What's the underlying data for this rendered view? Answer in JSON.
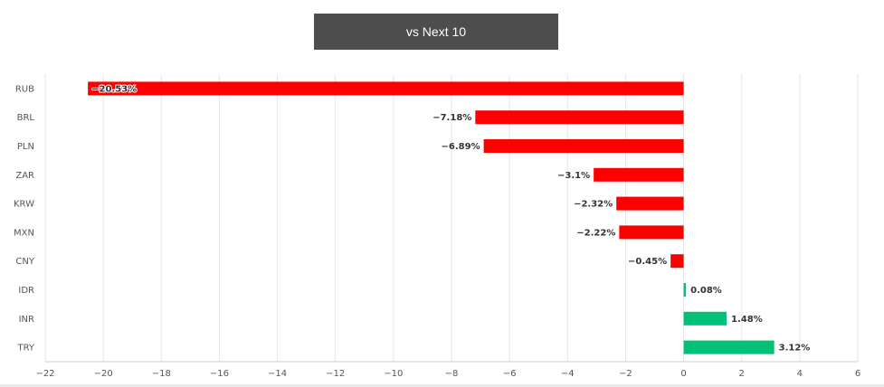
{
  "header": {
    "title": "vs Next 10"
  },
  "chart_data": {
    "type": "bar",
    "orientation": "horizontal",
    "title": "vs Next 10",
    "categories": [
      "RUB",
      "BRL",
      "PLN",
      "ZAR",
      "KRW",
      "MXN",
      "CNY",
      "IDR",
      "INR",
      "TRY"
    ],
    "values": [
      -20.53,
      -7.18,
      -6.89,
      -3.1,
      -2.32,
      -2.22,
      -0.45,
      0.08,
      1.48,
      3.12
    ],
    "data_labels": [
      "−20.53%",
      "−7.18%",
      "−6.89%",
      "−3.1%",
      "−2.32%",
      "−2.22%",
      "−0.45%",
      "0.08%",
      "1.48%",
      "3.12%"
    ],
    "xlim": [
      -22,
      6
    ],
    "xticks": [
      -22,
      -20,
      -18,
      -16,
      -14,
      -12,
      -10,
      -8,
      -6,
      -4,
      -2,
      0,
      2,
      4,
      6
    ],
    "xtick_labels": [
      "−22",
      "−20",
      "−18",
      "−16",
      "−14",
      "−12",
      "−10",
      "−8",
      "−6",
      "−4",
      "−2",
      "0",
      "2",
      "4",
      "6"
    ],
    "grid": "vertical",
    "colors": {
      "negative": "#ff0000",
      "positive": "#00c176"
    },
    "xlabel": "",
    "ylabel": ""
  }
}
